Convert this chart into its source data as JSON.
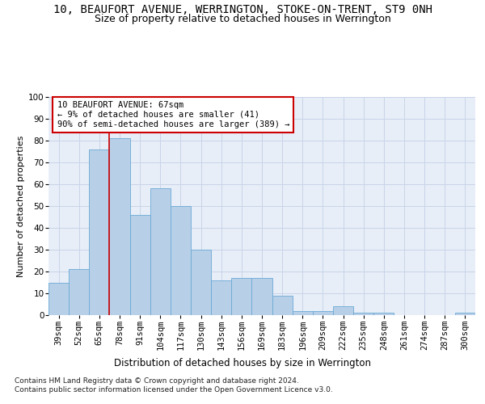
{
  "title1": "10, BEAUFORT AVENUE, WERRINGTON, STOKE-ON-TRENT, ST9 0NH",
  "title2": "Size of property relative to detached houses in Werrington",
  "xlabel": "Distribution of detached houses by size in Werrington",
  "ylabel": "Number of detached properties",
  "categories": [
    "39sqm",
    "52sqm",
    "65sqm",
    "78sqm",
    "91sqm",
    "104sqm",
    "117sqm",
    "130sqm",
    "143sqm",
    "156sqm",
    "169sqm",
    "183sqm",
    "196sqm",
    "209sqm",
    "222sqm",
    "235sqm",
    "248sqm",
    "261sqm",
    "274sqm",
    "287sqm",
    "300sqm"
  ],
  "values": [
    15,
    21,
    76,
    81,
    46,
    58,
    50,
    30,
    16,
    17,
    17,
    9,
    2,
    2,
    4,
    1,
    1,
    0,
    0,
    0,
    1
  ],
  "bar_color": "#b8cfe8",
  "bar_edge_color": "#6aaad4",
  "vline_color": "#cc0000",
  "annotation_text": "10 BEAUFORT AVENUE: 67sqm\n← 9% of detached houses are smaller (41)\n90% of semi-detached houses are larger (389) →",
  "annotation_box_color": "#ffffff",
  "annotation_box_edge": "#cc0000",
  "ylim": [
    0,
    100
  ],
  "yticks": [
    0,
    10,
    20,
    30,
    40,
    50,
    60,
    70,
    80,
    90,
    100
  ],
  "grid_color": "#c8d4e8",
  "background_color": "#e8eef8",
  "footnote": "Contains HM Land Registry data © Crown copyright and database right 2024.\nContains public sector information licensed under the Open Government Licence v3.0.",
  "title1_fontsize": 10,
  "title2_fontsize": 9,
  "xlabel_fontsize": 8.5,
  "ylabel_fontsize": 8,
  "tick_fontsize": 7.5,
  "annot_fontsize": 7.5,
  "footnote_fontsize": 6.5
}
